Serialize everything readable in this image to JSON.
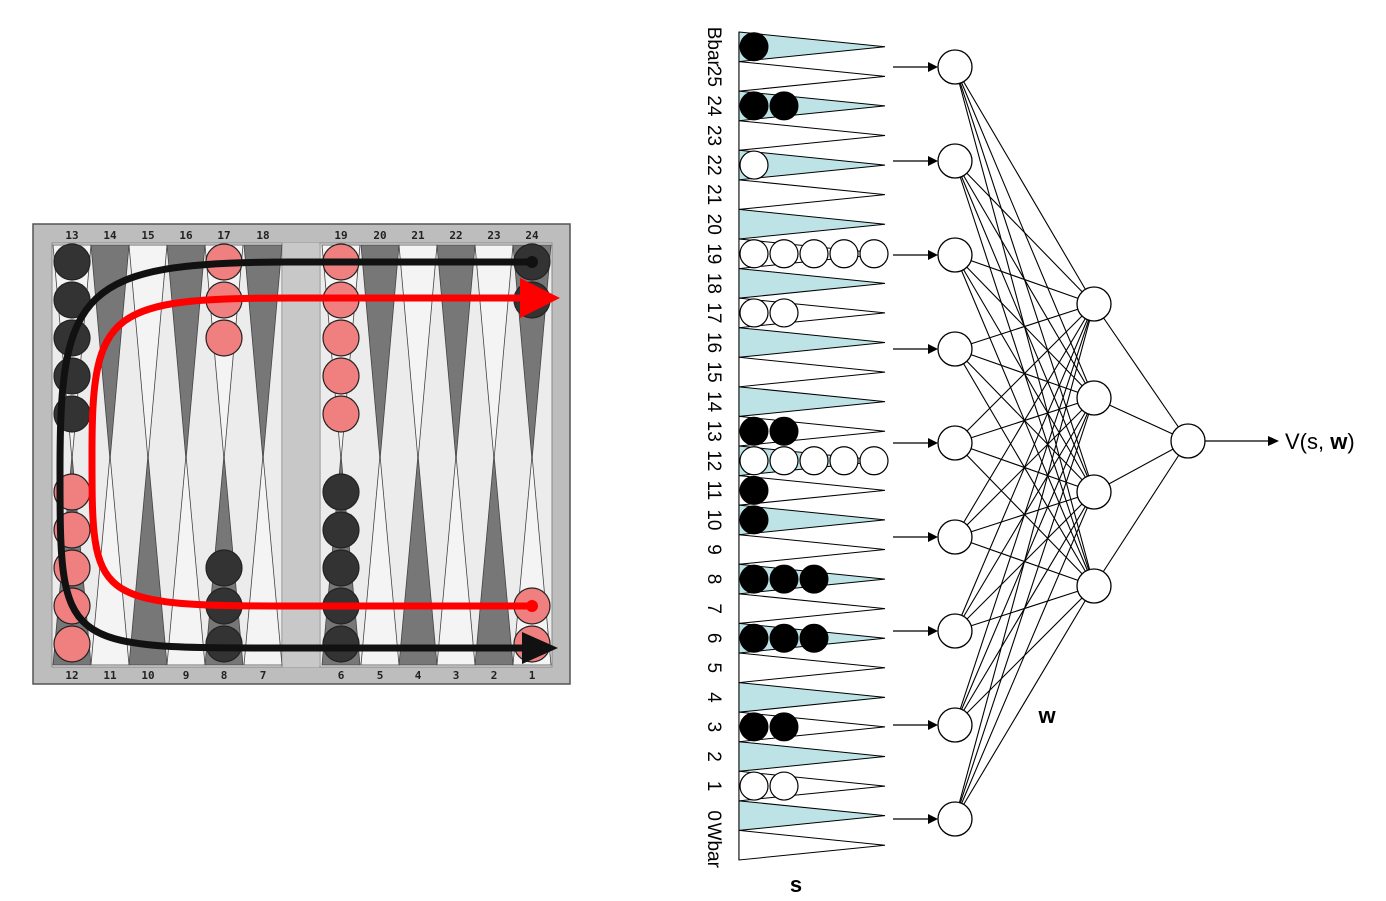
{
  "board": {
    "top_points": [
      "13",
      "14",
      "15",
      "16",
      "17",
      "18",
      "19",
      "20",
      "21",
      "22",
      "23",
      "24"
    ],
    "bottom_points": [
      "12",
      "11",
      "10",
      "9",
      "8",
      "7",
      "6",
      "5",
      "4",
      "3",
      "2",
      "1"
    ],
    "colors": {
      "frame": "#e0e0e0",
      "dark_triangle": "#777777",
      "black_checker": "#333333",
      "red_checker": "#f08080",
      "black_path": "#111111",
      "red_path": "#ff0000"
    }
  },
  "network": {
    "input_labels": [
      "Bbar",
      "25",
      "24",
      "23",
      "22",
      "21",
      "20",
      "19",
      "18",
      "17",
      "16",
      "15",
      "14",
      "13",
      "12",
      "11",
      "10",
      "9",
      "8",
      "7",
      "6",
      "5",
      "4",
      "3",
      "2",
      "1",
      "0",
      "Wbar"
    ],
    "inputs_caption": "s",
    "weights_caption": "w",
    "output_label_prefix": "V(s, ",
    "output_label_bold": "w",
    "output_label_suffix": ")",
    "input_counts": [
      {
        "black": 1,
        "white": 0
      },
      {
        "black": 0,
        "white": 0
      },
      {
        "black": 2,
        "white": 0
      },
      {
        "black": 0,
        "white": 0
      },
      {
        "black": 0,
        "white": 1
      },
      {
        "black": 0,
        "white": 0
      },
      {
        "black": 0,
        "white": 0
      },
      {
        "black": 0,
        "white": 5
      },
      {
        "black": 0,
        "white": 0
      },
      {
        "black": 0,
        "white": 2
      },
      {
        "black": 0,
        "white": 0
      },
      {
        "black": 0,
        "white": 0
      },
      {
        "black": 0,
        "white": 0
      },
      {
        "black": 2,
        "white": 0
      },
      {
        "black": 0,
        "white": 5
      },
      {
        "black": 1,
        "white": 0
      },
      {
        "black": 1,
        "white": 0
      },
      {
        "black": 0,
        "white": 0
      },
      {
        "black": 3,
        "white": 0
      },
      {
        "black": 0,
        "white": 0
      },
      {
        "black": 3,
        "white": 0
      },
      {
        "black": 0,
        "white": 0
      },
      {
        "black": 0,
        "white": 0
      },
      {
        "black": 2,
        "white": 0
      },
      {
        "black": 0,
        "white": 0
      },
      {
        "black": 0,
        "white": 2
      },
      {
        "black": 0,
        "white": 0
      },
      {
        "black": 0,
        "white": 0
      }
    ],
    "layer_sizes": [
      9,
      4,
      1
    ],
    "colors": {
      "triangle_fill": "#bde3e6",
      "checker_black": "#000000",
      "checker_white": "#ffffff"
    }
  }
}
